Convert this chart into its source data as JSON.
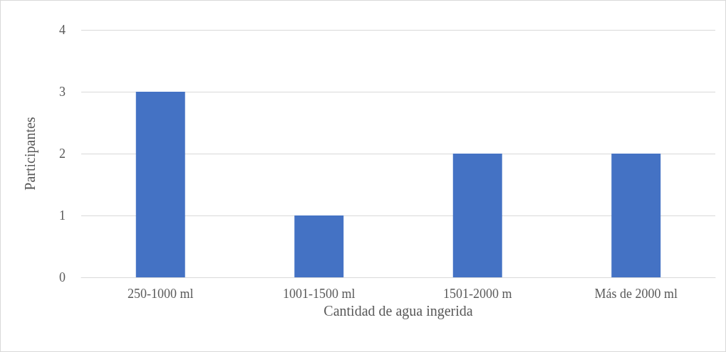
{
  "chart_data": {
    "type": "bar",
    "xlabel": "Cantidad de agua ingerida",
    "ylabel": "Participantes",
    "categories": [
      "250-1000 ml",
      "1001-1500 ml",
      "1501-2000 m",
      "Más de 2000 ml"
    ],
    "values": [
      3,
      1,
      2,
      2
    ],
    "color": "#4472c4",
    "ylim": [
      0,
      4
    ],
    "yticks": [
      0,
      1,
      2,
      3,
      4
    ],
    "grid": "y"
  }
}
